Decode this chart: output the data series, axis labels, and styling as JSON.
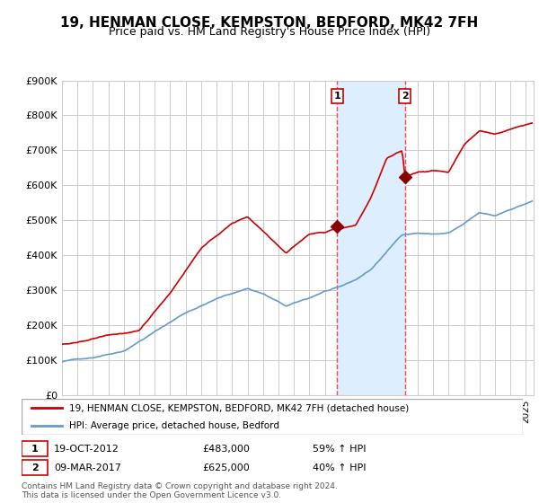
{
  "title": "19, HENMAN CLOSE, KEMPSTON, BEDFORD, MK42 7FH",
  "subtitle": "Price paid vs. HM Land Registry's House Price Index (HPI)",
  "title_fontsize": 11,
  "subtitle_fontsize": 9,
  "ylim": [
    0,
    900000
  ],
  "yticks": [
    0,
    100000,
    200000,
    300000,
    400000,
    500000,
    600000,
    700000,
    800000,
    900000
  ],
  "ytick_labels": [
    "£0",
    "£100K",
    "£200K",
    "£300K",
    "£400K",
    "£500K",
    "£600K",
    "£700K",
    "£800K",
    "£900K"
  ],
  "line1_color": "#cc0000",
  "line2_color": "#6699cc",
  "shade_color": "#ddeeff",
  "vline_color": "#ff4444",
  "marker_color": "#880000",
  "sale1_date_num": 2012.8,
  "sale1_price": 483000,
  "sale2_date_num": 2017.18,
  "sale2_price": 625000,
  "legend_line1": "19, HENMAN CLOSE, KEMPSTON, BEDFORD, MK42 7FH (detached house)",
  "legend_line2": "HPI: Average price, detached house, Bedford",
  "fn_date1": "19-OCT-2012",
  "fn_price1": "£483,000",
  "fn_hpi1": "59% ↑ HPI",
  "fn_date2": "09-MAR-2017",
  "fn_price2": "£625,000",
  "fn_hpi2": "40% ↑ HPI",
  "footnote3": "Contains HM Land Registry data © Crown copyright and database right 2024.\nThis data is licensed under the Open Government Licence v3.0.",
  "xstart": 1995.0,
  "xend": 2025.5,
  "background_color": "#ffffff",
  "plot_bg_color": "#ffffff",
  "grid_color": "#cccccc"
}
